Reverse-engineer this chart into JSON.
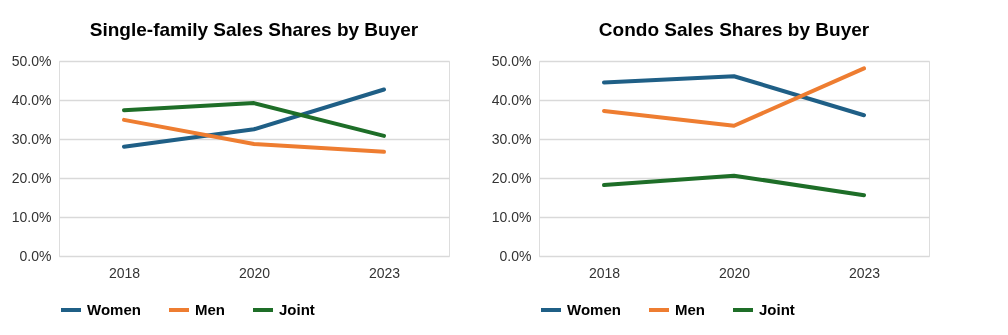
{
  "chart_data": [
    {
      "type": "line",
      "title": "Single-family Sales Shares by Buyer",
      "categories": [
        "2018",
        "2020",
        "2023"
      ],
      "series": [
        {
          "name": "Women",
          "color": "#1f5f86",
          "values": [
            28.0,
            32.5,
            42.7
          ]
        },
        {
          "name": "Men",
          "color": "#ee7d31",
          "values": [
            34.9,
            28.7,
            26.7
          ]
        },
        {
          "name": "Joint",
          "color": "#1e6e28",
          "values": [
            37.4,
            39.2,
            30.8
          ]
        }
      ],
      "ylim": [
        0,
        50
      ],
      "yticks": [
        {
          "value": 0,
          "label": "0.0%"
        },
        {
          "value": 10,
          "label": "10.0%"
        },
        {
          "value": 20,
          "label": "20.0%"
        },
        {
          "value": 30,
          "label": "30.0%"
        },
        {
          "value": 40,
          "label": "40.0%"
        },
        {
          "value": 50,
          "label": "50.0%"
        }
      ],
      "grid": "y",
      "legend": "bottom",
      "marker": "none",
      "line_style": "solid"
    },
    {
      "type": "line",
      "title": "Condo Sales Shares by Buyer",
      "categories": [
        "2018",
        "2020",
        "2023"
      ],
      "series": [
        {
          "name": "Women",
          "color": "#1f5f86",
          "values": [
            44.5,
            46.1,
            36.1
          ]
        },
        {
          "name": "Men",
          "color": "#ee7d31",
          "values": [
            37.2,
            33.4,
            48.1
          ]
        },
        {
          "name": "Joint",
          "color": "#1e6e28",
          "values": [
            18.2,
            20.6,
            15.6
          ]
        }
      ],
      "ylim": [
        0,
        50
      ],
      "yticks": [
        {
          "value": 0,
          "label": "0.0%"
        },
        {
          "value": 10,
          "label": "10.0%"
        },
        {
          "value": 20,
          "label": "20.0%"
        },
        {
          "value": 30,
          "label": "30.0%"
        },
        {
          "value": 40,
          "label": "40.0%"
        },
        {
          "value": 50,
          "label": "50.0%"
        }
      ],
      "grid": "y",
      "legend": "bottom",
      "marker": "none",
      "line_style": "solid"
    }
  ]
}
